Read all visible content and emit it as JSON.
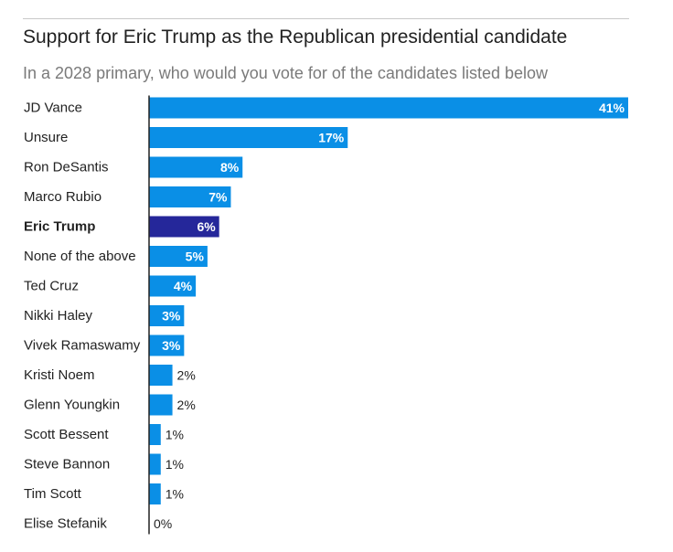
{
  "chart_data": {
    "type": "bar",
    "orientation": "horizontal",
    "title": "Support for Eric Trump as the Republican presidential candidate",
    "subtitle": "In a 2028 primary, who would you vote for of the candidates listed below",
    "categories": [
      "JD Vance",
      "Unsure",
      "Ron DeSantis",
      "Marco Rubio",
      "Eric Trump",
      "None of the above",
      "Ted Cruz",
      "Nikki Haley",
      "Vivek Ramaswamy",
      "Kristi Noem",
      "Glenn Youngkin",
      "Scott Bessent",
      "Steve Bannon",
      "Tim Scott",
      "Elise Stefanik"
    ],
    "values": [
      41,
      17,
      8,
      7,
      6,
      5,
      4,
      3,
      3,
      2,
      2,
      1,
      1,
      1,
      0
    ],
    "value_labels": [
      "41%",
      "17%",
      "8%",
      "7%",
      "6%",
      "5%",
      "4%",
      "3%",
      "3%",
      "2%",
      "2%",
      "1%",
      "1%",
      "1%",
      "0%"
    ],
    "highlight": "Eric Trump",
    "xlim": [
      0,
      41
    ],
    "grid": false,
    "legend": "none",
    "colors": {
      "bar": "#0a8fe6",
      "highlight": "#25279a",
      "axis": "#222222",
      "rule": "#c8c8c8",
      "title": "#222222",
      "subtitle": "#7a7a7a"
    }
  }
}
